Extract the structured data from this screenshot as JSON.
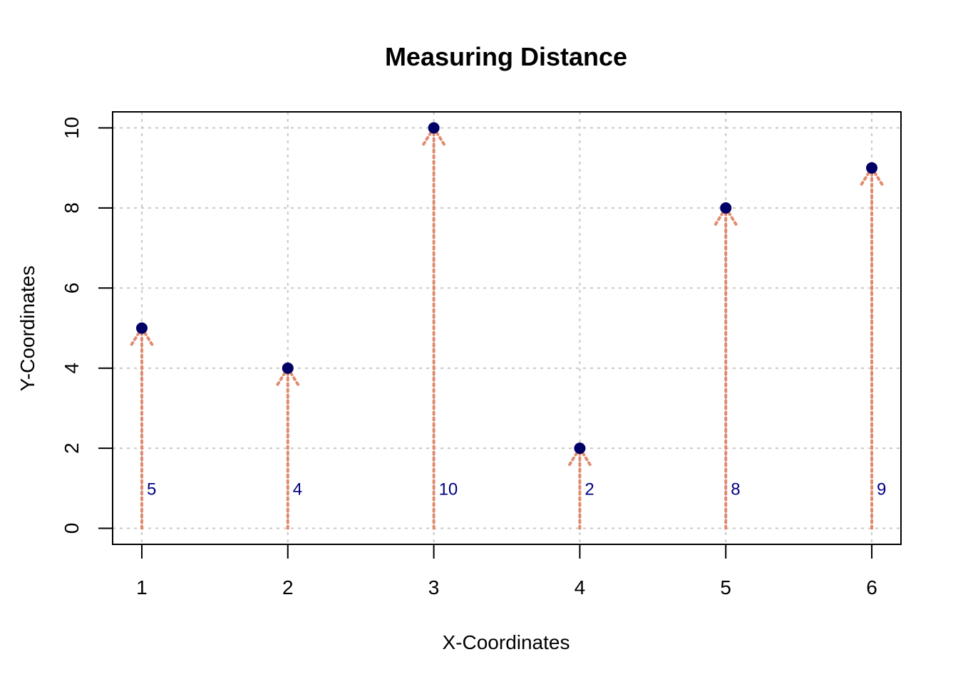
{
  "chart_data": {
    "type": "scatter",
    "title": "Measuring Distance",
    "xlabel": "X-Coordinates",
    "ylabel": "Y-Coordinates",
    "x": [
      1,
      2,
      3,
      4,
      5,
      6
    ],
    "y": [
      5,
      4,
      10,
      2,
      8,
      9
    ],
    "point_labels": [
      "5",
      "4",
      "10",
      "2",
      "8",
      "9"
    ],
    "xlim": [
      0.8,
      6.2
    ],
    "ylim": [
      -0.4,
      10.4
    ],
    "xticks": [
      1,
      2,
      3,
      4,
      5,
      6
    ],
    "yticks": [
      0,
      2,
      4,
      6,
      8,
      10
    ],
    "label_y": 1,
    "grid": true,
    "arrows": "dotted arrows from y=0 up to each point",
    "colors": {
      "points": "#000066",
      "labels": "#000080",
      "arrows": "#e08a6e",
      "grid": "#c8c8c8",
      "axis": "#000000"
    }
  }
}
